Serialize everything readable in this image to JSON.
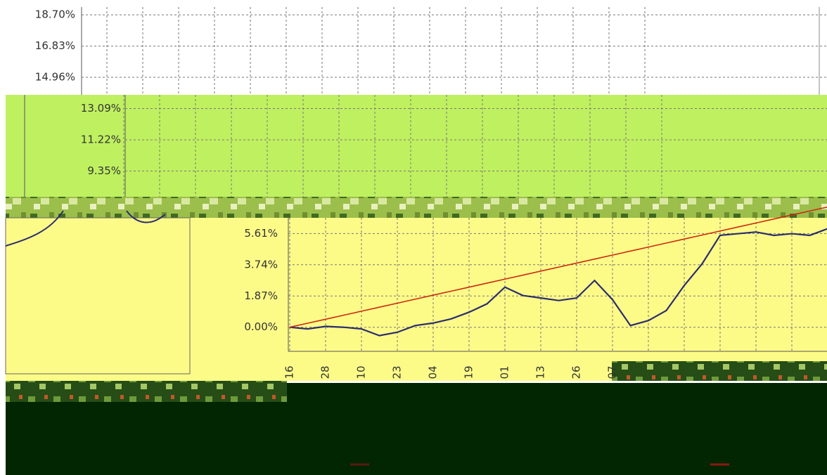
{
  "chart_data": {
    "type": "line",
    "categories": [
      "16",
      null,
      "28",
      null,
      "10",
      null,
      "23",
      null,
      "04",
      null,
      "19",
      null,
      "01",
      null,
      "13",
      null,
      "26",
      null,
      "07",
      null,
      null,
      null,
      null,
      null,
      null,
      null,
      null,
      null,
      null,
      null,
      null
    ],
    "series": [
      {
        "color": "#2b2d6e",
        "values": [
          0.0,
          -0.1,
          0.05,
          0.0,
          -0.1,
          -0.5,
          -0.3,
          0.1,
          0.25,
          0.5,
          0.9,
          1.4,
          2.4,
          1.9,
          1.75,
          1.6,
          1.75,
          2.8,
          1.65,
          0.1,
          0.4,
          1.0,
          2.5,
          3.8,
          5.5,
          5.6,
          5.7,
          5.5,
          5.6,
          5.5,
          5.9
        ]
      },
      {
        "color": "#cc2a12",
        "values": [
          0.0,
          0.24,
          0.48,
          0.72,
          0.96,
          1.2,
          1.44,
          1.68,
          1.92,
          2.16,
          2.4,
          2.64,
          2.88,
          3.12,
          3.36,
          3.6,
          3.84,
          4.08,
          4.32,
          4.56,
          4.8,
          5.04,
          5.28,
          5.52,
          5.76,
          6.0,
          6.24,
          6.48,
          6.72,
          6.96,
          7.2
        ]
      }
    ],
    "ylim": [
      -1.4,
      19.0
    ],
    "yticks": [
      {
        "value": 0,
        "label": "0.00%"
      },
      {
        "value": 1.87,
        "label": "1.87%"
      },
      {
        "value": 3.74,
        "label": "3.74%"
      },
      {
        "value": 5.61,
        "label": "5.61%"
      },
      {
        "value": 9.35,
        "label": "9.35%"
      },
      {
        "value": 11.22,
        "label": "11.22%"
      },
      {
        "value": 13.09,
        "label": "13.09%"
      },
      {
        "value": 14.96,
        "label": "14.96%"
      },
      {
        "value": 16.83,
        "label": "16.83%"
      },
      {
        "value": 18.7,
        "label": "18.70%"
      }
    ],
    "grid": true
  }
}
